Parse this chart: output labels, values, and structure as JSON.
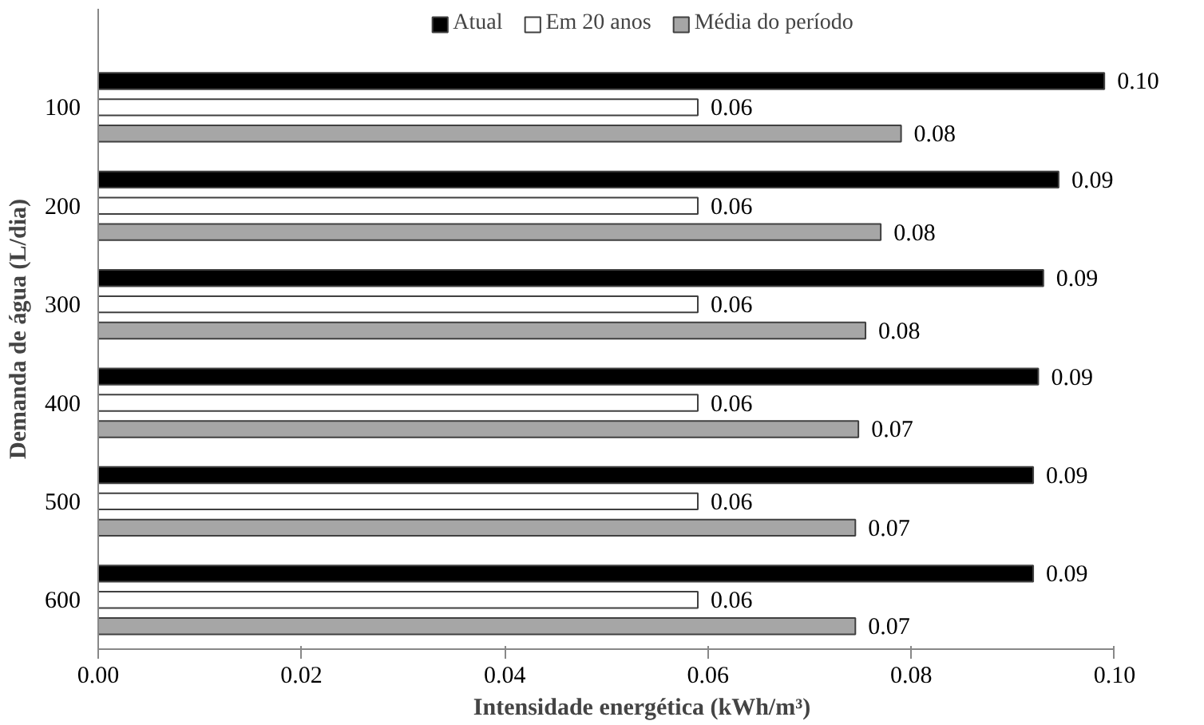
{
  "chart_data": {
    "type": "bar",
    "orientation": "horizontal",
    "xlabel": "Intensidade energética (kWh/m³)",
    "ylabel": "Demanda de água (L/dia)",
    "categories": [
      "100",
      "200",
      "300",
      "400",
      "500",
      "600"
    ],
    "xlim": [
      0,
      0.1
    ],
    "xticks": [
      {
        "value": 0,
        "label": "0.00"
      },
      {
        "value": 0.02,
        "label": "0.02"
      },
      {
        "value": 0.04,
        "label": "0.04"
      },
      {
        "value": 0.06,
        "label": "0.06"
      },
      {
        "value": 0.08,
        "label": "0.08"
      },
      {
        "value": 0.1,
        "label": "0.10"
      }
    ],
    "grid": false,
    "legend": "top",
    "series": [
      {
        "name": "Atual",
        "color": "#000000",
        "values": [
          0.099,
          0.0945,
          0.093,
          0.0925,
          0.092,
          0.092
        ],
        "value_labels": [
          "0.10",
          "0.09",
          "0.09",
          "0.09",
          "0.09",
          "0.09"
        ]
      },
      {
        "name": "Em 20 anos",
        "color": "#ffffff",
        "values": [
          0.059,
          0.059,
          0.059,
          0.059,
          0.059,
          0.059
        ],
        "value_labels": [
          "0.06",
          "0.06",
          "0.06",
          "0.06",
          "0.06",
          "0.06"
        ]
      },
      {
        "name": "Média do período",
        "color": "#a6a6a6",
        "values": [
          0.079,
          0.077,
          0.0755,
          0.0748,
          0.0745,
          0.0745
        ],
        "value_labels": [
          "0.08",
          "0.08",
          "0.08",
          "0.07",
          "0.07",
          "0.07"
        ]
      }
    ]
  }
}
